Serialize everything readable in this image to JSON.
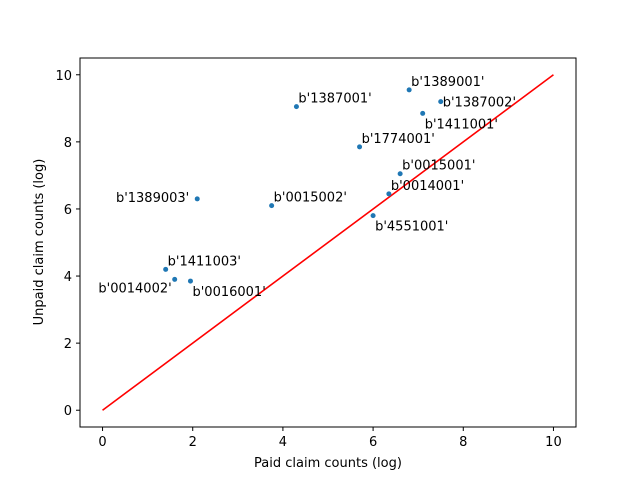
{
  "chart_data": {
    "type": "scatter",
    "xlabel": "Paid claim counts (log)",
    "ylabel": "Unpaid claim counts (log)",
    "xlim": [
      -0.5,
      10.5
    ],
    "ylim": [
      -0.5,
      10.5
    ],
    "xticks": [
      0,
      2,
      4,
      6,
      8,
      10
    ],
    "yticks": [
      0,
      2,
      4,
      6,
      8,
      10
    ],
    "grid": false,
    "point_color": "#1f77b4",
    "line_color": "#ff0000",
    "reference_line": {
      "x": [
        0,
        10
      ],
      "y": [
        0,
        10
      ]
    },
    "points": [
      {
        "label": "b'1389001'",
        "x": 6.8,
        "y": 9.55,
        "anchor": "above-right"
      },
      {
        "label": "b'1387002'",
        "x": 7.5,
        "y": 9.2,
        "anchor": "right"
      },
      {
        "label": "b'1387001'",
        "x": 4.3,
        "y": 9.05,
        "anchor": "above-right"
      },
      {
        "label": "b'1411001'",
        "x": 7.1,
        "y": 8.85,
        "anchor": "below-right"
      },
      {
        "label": "b'1774001'",
        "x": 5.7,
        "y": 7.85,
        "anchor": "above-right"
      },
      {
        "label": "b'0015001'",
        "x": 6.6,
        "y": 7.05,
        "anchor": "above-right"
      },
      {
        "label": "b'0014001'",
        "x": 6.35,
        "y": 6.45,
        "anchor": "above-right"
      },
      {
        "label": "b'1389003'",
        "x": 2.1,
        "y": 6.3,
        "anchor": "left"
      },
      {
        "label": "b'0015002'",
        "x": 3.75,
        "y": 6.1,
        "anchor": "above-right"
      },
      {
        "label": "b'4551001'",
        "x": 6.0,
        "y": 5.8,
        "anchor": "below-right"
      },
      {
        "label": "b'1411003'",
        "x": 1.4,
        "y": 4.2,
        "anchor": "above-right"
      },
      {
        "label": "b'0014002'",
        "x": 1.6,
        "y": 3.9,
        "anchor": "below-left"
      },
      {
        "label": "b'0016001'",
        "x": 1.95,
        "y": 3.85,
        "anchor": "below-right"
      }
    ]
  }
}
